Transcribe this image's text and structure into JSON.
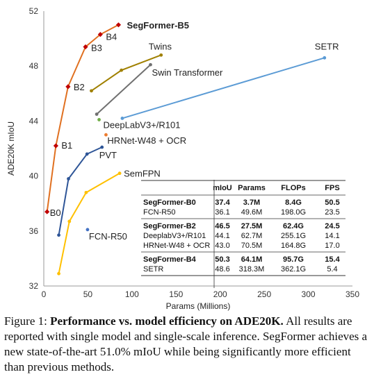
{
  "chart_data": {
    "type": "scatter",
    "xlabel": "Params (Millions)",
    "ylabel": "ADE20K mIoU",
    "xlim": [
      0,
      350
    ],
    "ylim": [
      32,
      52
    ],
    "xticks": [
      0,
      50,
      100,
      150,
      200,
      250,
      300,
      350
    ],
    "yticks": [
      32,
      36,
      40,
      44,
      48,
      52
    ],
    "grid": false,
    "series": [
      {
        "name": "SegFormer",
        "color": "#e07020",
        "marker": "diamond",
        "marker_color": "#c00000",
        "points": [
          {
            "label": "B0",
            "x": 3.7,
            "y": 37.4
          },
          {
            "label": "B1",
            "x": 13.7,
            "y": 42.2
          },
          {
            "label": "B2",
            "x": 27.5,
            "y": 46.5
          },
          {
            "label": "B3",
            "x": 47.3,
            "y": 49.4
          },
          {
            "label": "B4",
            "x": 64.1,
            "y": 50.3
          },
          {
            "label": "SegFormer-B5",
            "x": 84.7,
            "y": 51.0
          }
        ]
      },
      {
        "name": "Twins",
        "color": "#a08000",
        "points": [
          {
            "label": "",
            "x": 54,
            "y": 46.2
          },
          {
            "label": "",
            "x": 88,
            "y": 47.7
          },
          {
            "label": "Twins",
            "x": 133,
            "y": 48.8
          }
        ]
      },
      {
        "name": "Swin Transformer",
        "color": "#707070",
        "points": [
          {
            "label": "",
            "x": 60,
            "y": 44.5
          },
          {
            "label": "Swin Transformer",
            "x": 121,
            "y": 48.1
          }
        ]
      },
      {
        "name": "SETR",
        "color": "#5b9bd5",
        "points": [
          {
            "label": "",
            "x": 89,
            "y": 44.2
          },
          {
            "label": "SETR",
            "x": 318.3,
            "y": 48.6
          }
        ]
      },
      {
        "name": "PVT",
        "color": "#2e5597",
        "points": [
          {
            "label": "",
            "x": 17,
            "y": 35.7
          },
          {
            "label": "",
            "x": 28,
            "y": 39.8
          },
          {
            "label": "",
            "x": 49,
            "y": 41.6
          },
          {
            "label": "PVT",
            "x": 66,
            "y": 42.1
          }
        ]
      },
      {
        "name": "SemFPN",
        "color": "#ffc000",
        "points": [
          {
            "label": "",
            "x": 17,
            "y": 32.9
          },
          {
            "label": "",
            "x": 29,
            "y": 36.7
          },
          {
            "label": "",
            "x": 48,
            "y": 38.8
          },
          {
            "label": "SemFPN",
            "x": 86,
            "y": 40.2
          }
        ]
      },
      {
        "name": "DeepLabV3+/R101",
        "color": "#70ad47",
        "single": true,
        "points": [
          {
            "label": "DeepLabV3+/R101",
            "x": 62.7,
            "y": 44.1
          }
        ]
      },
      {
        "name": "HRNet-W48 + OCR",
        "color": "#ed7d31",
        "single": true,
        "points": [
          {
            "label": "HRNet-W48 + OCR",
            "x": 70.5,
            "y": 43.0
          }
        ]
      },
      {
        "name": "FCN-R50",
        "color": "#4472c4",
        "single": true,
        "points": [
          {
            "label": "FCN-R50",
            "x": 49.6,
            "y": 36.1
          }
        ]
      }
    ],
    "inset_table": {
      "columns": [
        "",
        "mIoU",
        "Params",
        "FLOPs",
        "FPS"
      ],
      "groups": [
        [
          {
            "bold": true,
            "cells": [
              "SegFormer-B0",
              "37.4",
              "3.7M",
              "8.4G",
              "50.5"
            ]
          },
          {
            "bold": false,
            "cells": [
              "FCN-R50",
              "36.1",
              "49.6M",
              "198.0G",
              "23.5"
            ]
          }
        ],
        [
          {
            "bold": true,
            "cells": [
              "SegFormer-B2",
              "46.5",
              "27.5M",
              "62.4G",
              "24.5"
            ]
          },
          {
            "bold": false,
            "cells": [
              "DeeplabV3+/R101",
              "44.1",
              "62.7M",
              "255.1G",
              "14.1"
            ]
          },
          {
            "bold": false,
            "cells": [
              "HRNet-W48 + OCR",
              "43.0",
              "70.5M",
              "164.8G",
              "17.0"
            ]
          }
        ],
        [
          {
            "bold": true,
            "cells": [
              "SegFormer-B4",
              "50.3",
              "64.1M",
              "95.7G",
              "15.4"
            ]
          },
          {
            "bold": false,
            "cells": [
              "SETR",
              "48.6",
              "318.3M",
              "362.1G",
              "5.4"
            ]
          }
        ]
      ]
    }
  },
  "caption": {
    "prefix": "Figure 1: ",
    "bold": "Performance vs. model efficiency on ADE20K.",
    "rest": " All results are reported with single model and single-scale inference. SegFormer achieves a new state-of-the-art 51.0% mIoU while being significantly more efficient than previous methods."
  }
}
